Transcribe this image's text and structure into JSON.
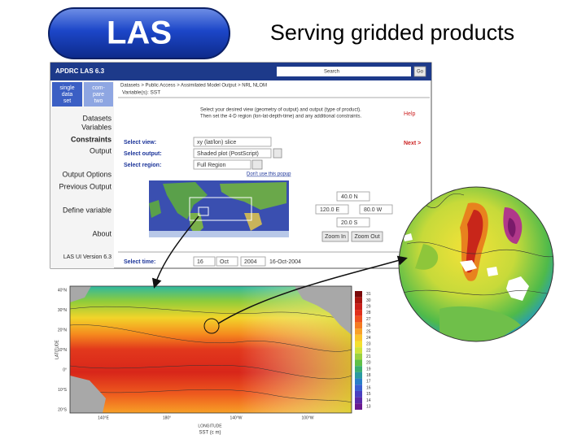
{
  "logo": "LAS",
  "title": "Serving gridded products",
  "las_ui": {
    "header": {
      "title": "APDRC  LAS  6.3",
      "search": "Search",
      "go": "Go"
    },
    "tabs": [
      [
        "single",
        "data",
        "set"
      ],
      [
        "com-",
        "pare",
        "two"
      ]
    ],
    "breadcrumb": "Datasets > Public Access > Assimilated Model Output > NRL NLOM",
    "variable": "Variable(s): SST",
    "menu": [
      "Datasets",
      "Variables",
      "Constraints",
      "Output",
      "Output Options",
      "Previous Output",
      "Define variable",
      "About"
    ],
    "version": "LAS UI Version 6.3",
    "instructions": [
      "Select your desired view (geometry of output) and output (type of product).",
      "Then set the 4-D region (lon-lat-depth-time) and any additional constraints."
    ],
    "help": "Help",
    "next": "Next >",
    "form": {
      "view_label": "Select view:",
      "view": "xy (lat/lon) slice",
      "output_label": "Select output:",
      "output": "Shaded plot (PostScript)",
      "region_label": "Select region:",
      "region": "Full Region",
      "popup": "Don't use this popup",
      "time_label": "Select time:",
      "day": "16",
      "month": "Oct",
      "year": "2004",
      "date": "16-Oct-2004"
    },
    "coords": {
      "north": "40.0 N",
      "west": "120.0 E",
      "east": "80.0 W",
      "south": "20.0 S",
      "zoom_in": "Zoom In",
      "zoom_out": "Zoom Out"
    }
  },
  "sst_map": {
    "y_labels": [
      "40°N",
      "30°N",
      "20°N",
      "10°N",
      "0°",
      "10°S",
      "20°S"
    ],
    "y_title": "LATITUDE",
    "x_labels": [
      "140°E",
      "180°",
      "140°W",
      "100°W"
    ],
    "x_title": "LONGITUDE",
    "caption": "SST (c m)",
    "colorbar": [
      31,
      30,
      29,
      28,
      27,
      26,
      25,
      24,
      23,
      22,
      21,
      20,
      19,
      18,
      17,
      16,
      15,
      14,
      13
    ]
  }
}
